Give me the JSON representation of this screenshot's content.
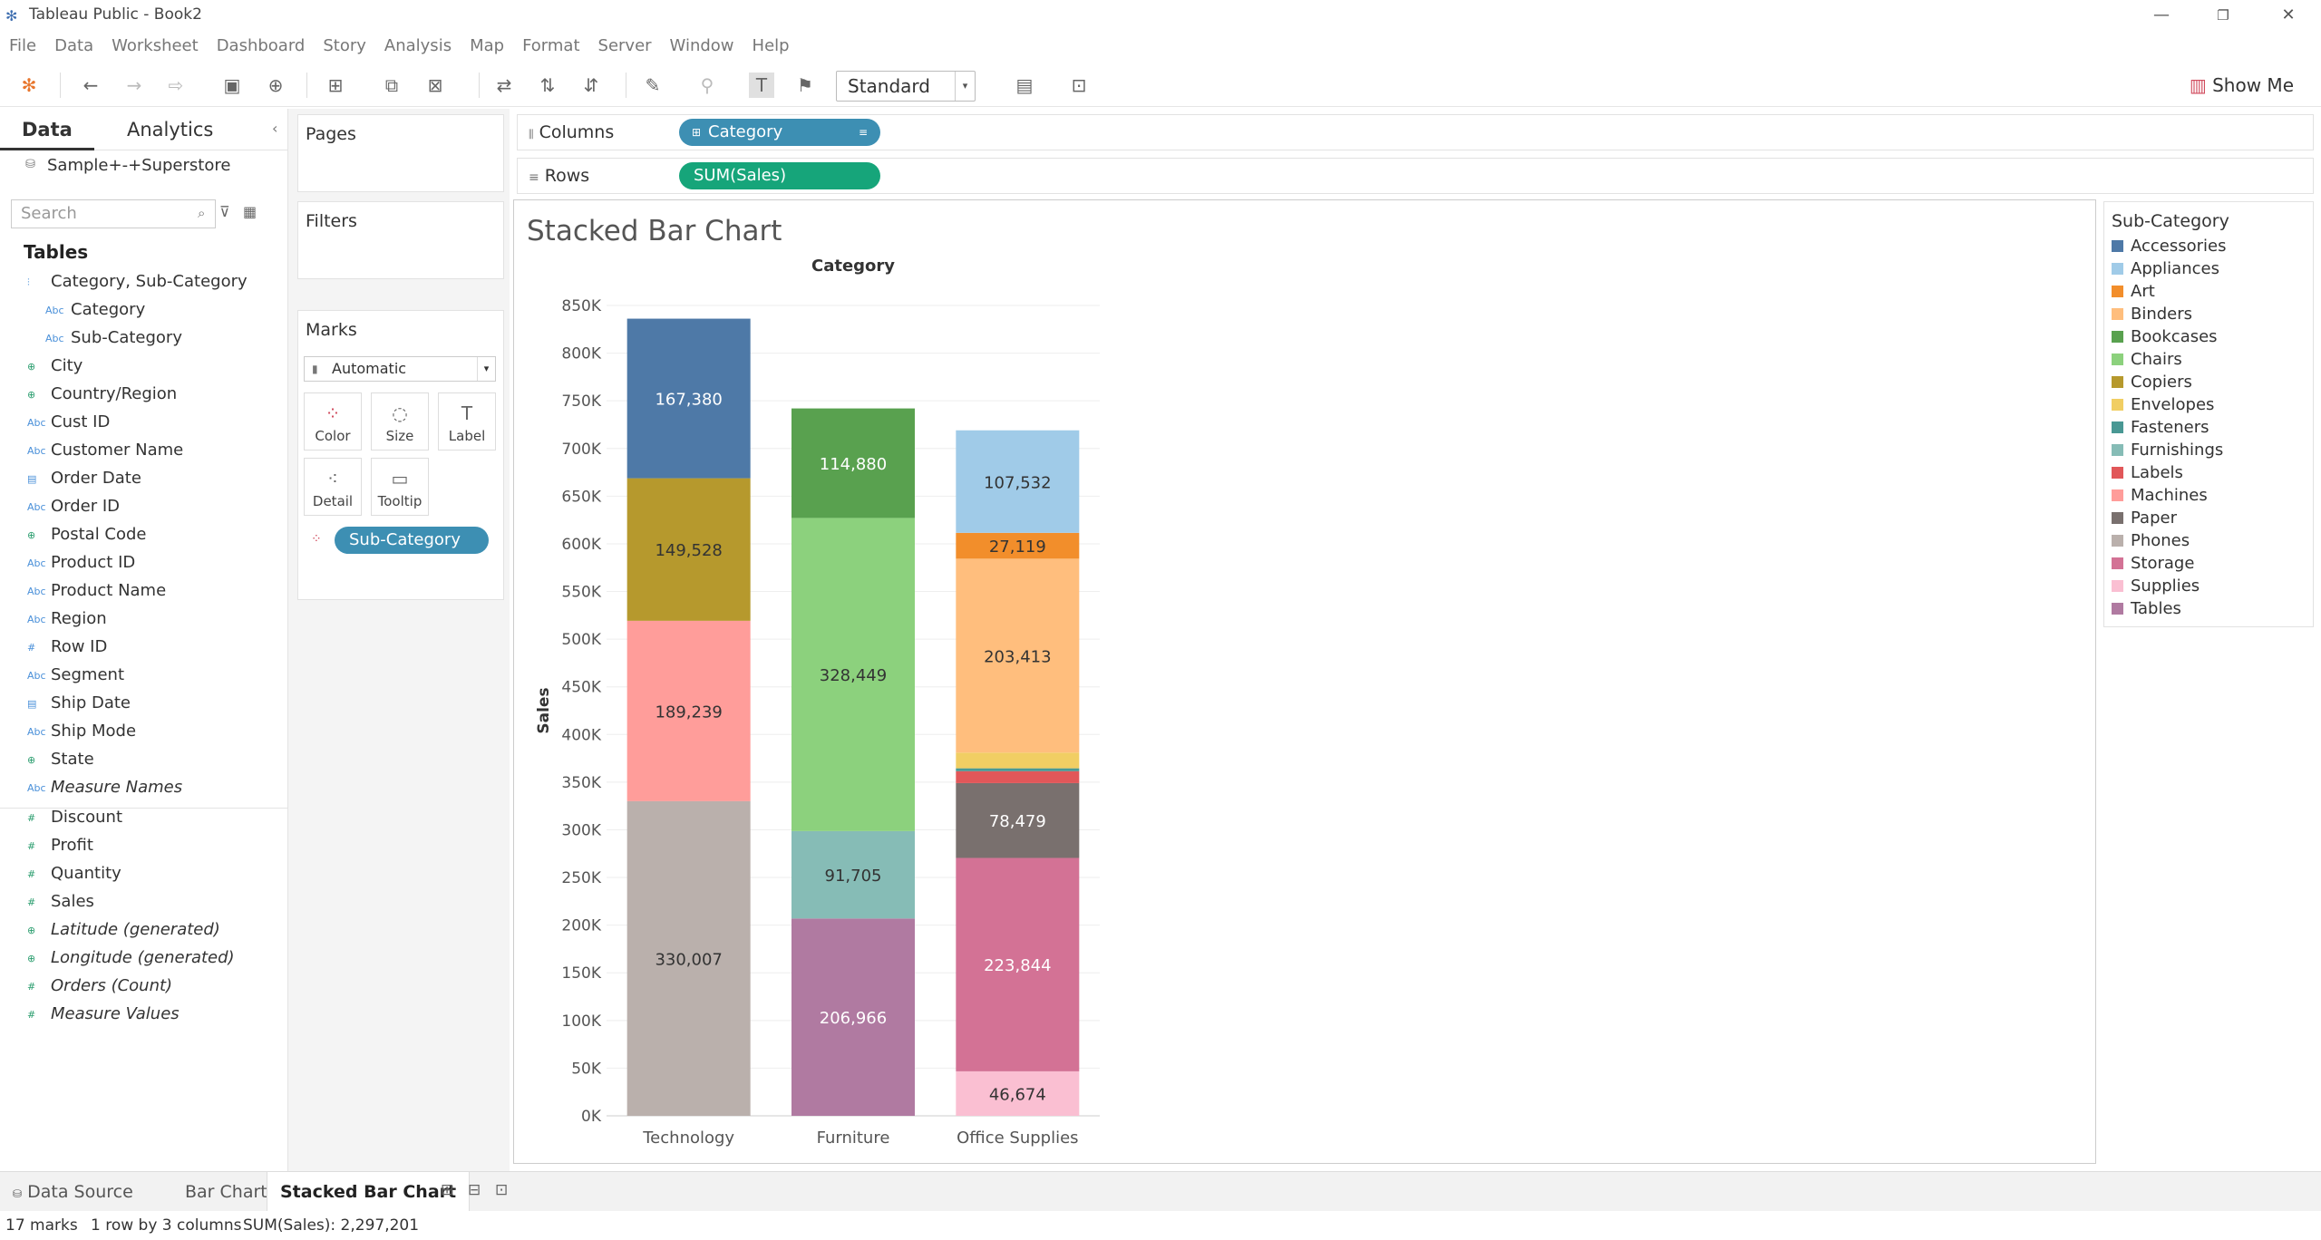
{
  "window": {
    "title": "Tableau Public - Book2"
  },
  "menu": [
    "File",
    "Data",
    "Worksheet",
    "Dashboard",
    "Story",
    "Analysis",
    "Map",
    "Format",
    "Server",
    "Window",
    "Help"
  ],
  "toolbar": {
    "fit_value": "Standard",
    "show_me": "Show Me"
  },
  "data_pane": {
    "tab_data": "Data",
    "tab_analytics": "Analytics",
    "datasource": "Sample+-+Superstore",
    "search_placeholder": "Search",
    "tables_heading": "Tables",
    "fields": [
      {
        "name": "Category, Sub-Category",
        "icon": "hierarchy",
        "italic": false
      },
      {
        "name": "Category",
        "icon": "Abc",
        "italic": false,
        "child": true
      },
      {
        "name": "Sub-Category",
        "icon": "Abc",
        "italic": false,
        "child": true
      },
      {
        "name": "City",
        "icon": "globe",
        "italic": false
      },
      {
        "name": "Country/Region",
        "icon": "globe",
        "italic": false
      },
      {
        "name": "Cust ID",
        "icon": "Abc",
        "italic": false
      },
      {
        "name": "Customer Name",
        "icon": "Abc",
        "italic": false
      },
      {
        "name": "Order Date",
        "icon": "calendar",
        "italic": false
      },
      {
        "name": "Order ID",
        "icon": "Abc",
        "italic": false
      },
      {
        "name": "Postal Code",
        "icon": "globe",
        "italic": false
      },
      {
        "name": "Product ID",
        "icon": "Abc",
        "italic": false
      },
      {
        "name": "Product Name",
        "icon": "Abc",
        "italic": false
      },
      {
        "name": "Region",
        "icon": "Abc",
        "italic": false
      },
      {
        "name": "Row ID",
        "icon": "#",
        "italic": false
      },
      {
        "name": "Segment",
        "icon": "Abc",
        "italic": false
      },
      {
        "name": "Ship Date",
        "icon": "calendar",
        "italic": false
      },
      {
        "name": "Ship Mode",
        "icon": "Abc",
        "italic": false
      },
      {
        "name": "State",
        "icon": "globe",
        "italic": false
      },
      {
        "name": "Measure Names",
        "icon": "Abc",
        "italic": true
      },
      {
        "name": "Discount",
        "icon": "#",
        "italic": false,
        "measure": true
      },
      {
        "name": "Profit",
        "icon": "#",
        "italic": false,
        "measure": true
      },
      {
        "name": "Quantity",
        "icon": "#",
        "italic": false,
        "measure": true
      },
      {
        "name": "Sales",
        "icon": "#",
        "italic": false,
        "measure": true
      },
      {
        "name": "Latitude (generated)",
        "icon": "globe",
        "italic": true,
        "measure": true
      },
      {
        "name": "Longitude (generated)",
        "icon": "globe",
        "italic": true,
        "measure": true
      },
      {
        "name": "Orders (Count)",
        "icon": "#",
        "italic": true,
        "measure": true
      },
      {
        "name": "Measure Values",
        "icon": "#",
        "italic": true,
        "measure": true
      }
    ]
  },
  "cards": {
    "pages": "Pages",
    "filters": "Filters",
    "marks": "Marks",
    "mark_type": "Automatic",
    "buttons": [
      "Color",
      "Size",
      "Label",
      "Detail",
      "Tooltip"
    ],
    "color_pill": "Sub-Category"
  },
  "shelves": {
    "columns_label": "Columns",
    "rows_label": "Rows",
    "columns_pill": "Category",
    "rows_pill": "SUM(Sales)"
  },
  "chart_data": {
    "type": "bar",
    "title": "Stacked Bar Chart",
    "xlabel": "Category",
    "ylabel": "Sales",
    "ylim": [
      0,
      850000
    ],
    "yticks": [
      "0K",
      "50K",
      "100K",
      "150K",
      "200K",
      "250K",
      "300K",
      "350K",
      "400K",
      "450K",
      "500K",
      "550K",
      "600K",
      "650K",
      "700K",
      "750K",
      "800K",
      "850K"
    ],
    "categories": [
      "Technology",
      "Furniture",
      "Office Supplies"
    ],
    "stacks": [
      [
        {
          "sub": "Phones",
          "value": 330007,
          "label": "330,007"
        },
        {
          "sub": "Machines",
          "value": 189239,
          "label": "189,239"
        },
        {
          "sub": "Copiers",
          "value": 149528,
          "label": "149,528"
        },
        {
          "sub": "Accessories",
          "value": 167380,
          "label": "167,380"
        }
      ],
      [
        {
          "sub": "Tables",
          "value": 206966,
          "label": "206,966"
        },
        {
          "sub": "Furnishings",
          "value": 91705,
          "label": "91,705"
        },
        {
          "sub": "Chairs",
          "value": 328449,
          "label": "328,449"
        },
        {
          "sub": "Bookcases",
          "value": 114880,
          "label": "114,880"
        }
      ],
      [
        {
          "sub": "Supplies",
          "value": 46674,
          "label": "46,674"
        },
        {
          "sub": "Storage",
          "value": 223844,
          "label": "223,844"
        },
        {
          "sub": "Paper",
          "value": 78479,
          "label": "78,479"
        },
        {
          "sub": "Labels",
          "value": 12486,
          "label": ""
        },
        {
          "sub": "Fasteners",
          "value": 3024,
          "label": ""
        },
        {
          "sub": "Envelopes",
          "value": 16476,
          "label": ""
        },
        {
          "sub": "Binders",
          "value": 203413,
          "label": "203,413"
        },
        {
          "sub": "Art",
          "value": 27119,
          "label": "27,119"
        },
        {
          "sub": "Appliances",
          "value": 107532,
          "label": "107,532"
        }
      ]
    ],
    "legend_title": "Sub-Category",
    "legend": [
      {
        "name": "Accessories",
        "color": "#4e79a7"
      },
      {
        "name": "Appliances",
        "color": "#a0cbe8"
      },
      {
        "name": "Art",
        "color": "#f28e2b"
      },
      {
        "name": "Binders",
        "color": "#ffbe7d"
      },
      {
        "name": "Bookcases",
        "color": "#59a14f"
      },
      {
        "name": "Chairs",
        "color": "#8cd17d"
      },
      {
        "name": "Copiers",
        "color": "#b6992d"
      },
      {
        "name": "Envelopes",
        "color": "#f1ce63"
      },
      {
        "name": "Fasteners",
        "color": "#499894"
      },
      {
        "name": "Furnishings",
        "color": "#86bcb6"
      },
      {
        "name": "Labels",
        "color": "#e15759"
      },
      {
        "name": "Machines",
        "color": "#ff9d9a"
      },
      {
        "name": "Paper",
        "color": "#79706e"
      },
      {
        "name": "Phones",
        "color": "#bab0ac"
      },
      {
        "name": "Storage",
        "color": "#d37295"
      },
      {
        "name": "Supplies",
        "color": "#fabfd2"
      },
      {
        "name": "Tables",
        "color": "#b07aa1"
      }
    ]
  },
  "sheet_tabs": {
    "data_source": "Data Source",
    "tabs": [
      "Bar Chart",
      "Stacked Bar Chart"
    ],
    "active": "Stacked Bar Chart"
  },
  "status": {
    "marks": "17 marks",
    "dims": "1 row by 3 columns",
    "sum": "SUM(Sales): 2,297,201"
  }
}
